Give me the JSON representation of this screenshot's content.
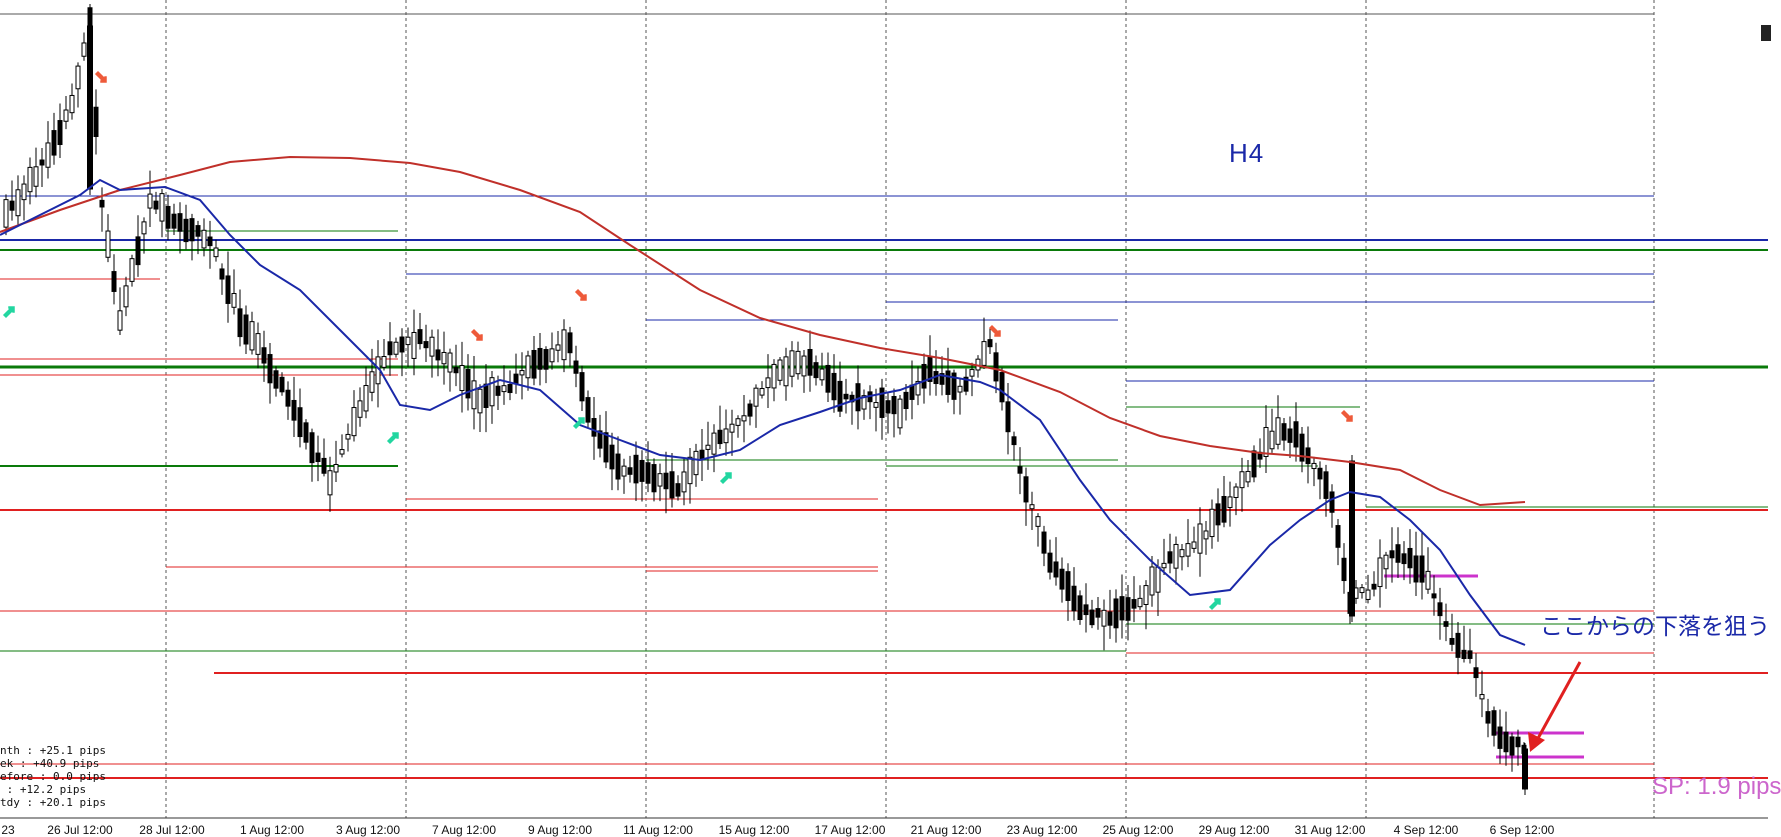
{
  "chart_title": "H4",
  "annotation_text": "ここからの下落を狙う",
  "spread_text": "SP: 1.9 pips",
  "stats": [
    {
      "label": "nth",
      "value": ": +25.1 pips"
    },
    {
      "label": "ek",
      "value": ": +40.9 pips"
    },
    {
      "label": "efore",
      "value": ": 0.0 pips"
    },
    {
      "label": "",
      "value": ": +12.2 pips"
    },
    {
      "label": "tdy",
      "value": ": +20.1 pips"
    }
  ],
  "chart_data": {
    "type": "candlestick",
    "timeframe": "H4",
    "x_tick_labels": [
      "23",
      "26 Jul 12:00",
      "28 Jul 12:00",
      "1 Aug 12:00",
      "3 Aug 12:00",
      "7 Aug 12:00",
      "9 Aug 12:00",
      "11 Aug 12:00",
      "15 Aug 12:00",
      "17 Aug 12:00",
      "21 Aug 12:00",
      "23 Aug 12:00",
      "25 Aug 12:00",
      "29 Aug 12:00",
      "31 Aug 12:00",
      "4 Sep 12:00",
      "6 Sep 12:00"
    ],
    "grid": "vertical dashed",
    "colors": {
      "bull_body": "#ffffff",
      "bear_body": "#000000",
      "ma_fast": "#1a28a8",
      "ma_slow": "#c0302a",
      "horizontal_blue": "#1a28a8",
      "horizontal_green": "#0a7a0a",
      "horizontal_red": "#e02020",
      "marker_magenta": "#cc33cc",
      "arrow_up": "#22d6a0",
      "arrow_down": "#ee5a3a",
      "callout_arrow": "#e02020"
    }
  }
}
